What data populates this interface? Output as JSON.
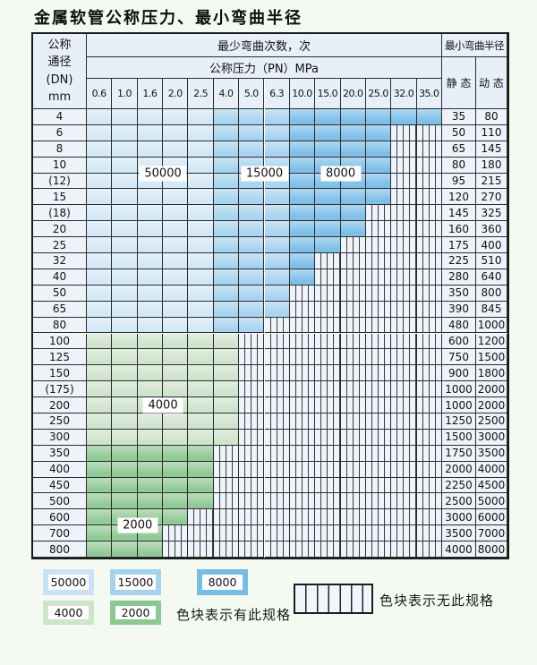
{
  "title": "金属软管公称压力、最小弯曲半径",
  "table": {
    "dn_header_lines": [
      "公称",
      "通径",
      "(DN)",
      "mm"
    ],
    "cycles_header": "最少弯曲次数，次",
    "pressure_header": "公称压力（PN）MPa",
    "pressure_columns": [
      "0.6",
      "1.0",
      "1.6",
      "2.0",
      "2.5",
      "4.0",
      "5.0",
      "6.3",
      "10.0",
      "15.0",
      "20.0",
      "25.0",
      "32.0",
      "35.0"
    ],
    "radius_header": "最小弯曲半径",
    "static_header": "静 态",
    "dynamic_header": "动 态",
    "rows": [
      {
        "dn": "4",
        "colored": 14,
        "static": "35",
        "dynamic": "80"
      },
      {
        "dn": "6",
        "colored": 12,
        "static": "50",
        "dynamic": "110"
      },
      {
        "dn": "8",
        "colored": 12,
        "static": "65",
        "dynamic": "145"
      },
      {
        "dn": "10",
        "colored": 12,
        "static": "80",
        "dynamic": "180"
      },
      {
        "dn": "(12)",
        "colored": 12,
        "static": "95",
        "dynamic": "215"
      },
      {
        "dn": "15",
        "colored": 12,
        "static": "120",
        "dynamic": "270"
      },
      {
        "dn": "(18)",
        "colored": 11,
        "static": "145",
        "dynamic": "325"
      },
      {
        "dn": "20",
        "colored": 11,
        "static": "160",
        "dynamic": "360"
      },
      {
        "dn": "25",
        "colored": 10,
        "static": "175",
        "dynamic": "400"
      },
      {
        "dn": "32",
        "colored": 9,
        "static": "225",
        "dynamic": "510"
      },
      {
        "dn": "40",
        "colored": 9,
        "static": "280",
        "dynamic": "640"
      },
      {
        "dn": "50",
        "colored": 8,
        "static": "350",
        "dynamic": "800"
      },
      {
        "dn": "65",
        "colored": 8,
        "static": "390",
        "dynamic": "845"
      },
      {
        "dn": "80",
        "colored": 7,
        "static": "480",
        "dynamic": "1000"
      },
      {
        "dn": "100",
        "colored": 6,
        "static": "600",
        "dynamic": "1200"
      },
      {
        "dn": "125",
        "colored": 6,
        "static": "750",
        "dynamic": "1500"
      },
      {
        "dn": "150",
        "colored": 6,
        "static": "900",
        "dynamic": "1800"
      },
      {
        "dn": "(175)",
        "colored": 6,
        "static": "1000",
        "dynamic": "2000"
      },
      {
        "dn": "200",
        "colored": 6,
        "static": "1000",
        "dynamic": "2000"
      },
      {
        "dn": "250",
        "colored": 6,
        "static": "1250",
        "dynamic": "2500"
      },
      {
        "dn": "300",
        "colored": 6,
        "static": "1500",
        "dynamic": "3000"
      },
      {
        "dn": "350",
        "colored": 5,
        "static": "1750",
        "dynamic": "3500"
      },
      {
        "dn": "400",
        "colored": 5,
        "static": "2000",
        "dynamic": "4000"
      },
      {
        "dn": "450",
        "colored": 5,
        "static": "2250",
        "dynamic": "4500"
      },
      {
        "dn": "500",
        "colored": 5,
        "static": "2500",
        "dynamic": "5000"
      },
      {
        "dn": "600",
        "colored": 4,
        "static": "3000",
        "dynamic": "6000"
      },
      {
        "dn": "700",
        "colored": 3,
        "static": "3500",
        "dynamic": "7000"
      },
      {
        "dn": "800",
        "colored": 3,
        "static": "4000",
        "dynamic": "8000"
      }
    ],
    "zones": {
      "blue_rows_last_index": 13,
      "blue_light_last_col": 4,
      "blue_medium_last_col": 7,
      "green_light_last_row": 20
    },
    "annotations": [
      {
        "text": "50000",
        "col": 2,
        "col2": 3,
        "row": 3,
        "row2": 4
      },
      {
        "text": "15000",
        "col": 6,
        "col2": 7,
        "row": 3,
        "row2": 4
      },
      {
        "text": "8000",
        "col": 9,
        "col2": 10,
        "row": 3,
        "row2": 4
      },
      {
        "text": "4000",
        "col": 2,
        "col2": 3,
        "row": 18,
        "row2": 18
      },
      {
        "text": "2000",
        "col": 1,
        "col2": 2,
        "row": 25,
        "row2": 26
      }
    ]
  },
  "legend": {
    "items": [
      {
        "label": "50000",
        "color": "#cbe2f4"
      },
      {
        "label": "15000",
        "color": "#a6d2ee"
      },
      {
        "label": "8000",
        "color": "#76bce4"
      },
      {
        "label": "4000",
        "color": "#cee4cb"
      },
      {
        "label": "2000",
        "color": "#8cc892"
      }
    ],
    "has_spec_text": "色块表示有此规格",
    "no_spec_text": "色块表示无此规格"
  },
  "colors": {
    "blue_light": "#d4e9f7",
    "blue_medium": "#a9d4ef",
    "blue_dark": "#7fc0e8",
    "green_light": "#cfe4cc",
    "green_medium": "#93c996",
    "striped_bg": "#eef4fb",
    "header_bg": "#e7f0f8",
    "value_bg": "#edf3f9",
    "grid": "#2c2c2c",
    "page_bg": "#f4faf2"
  }
}
